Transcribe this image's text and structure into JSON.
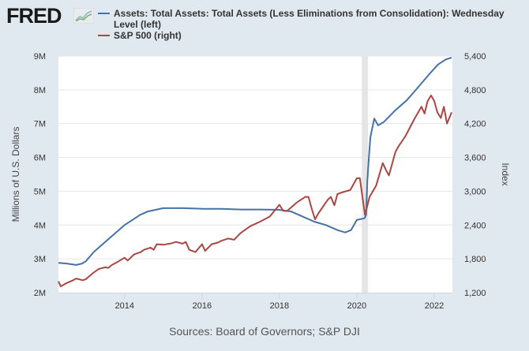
{
  "logo": {
    "text": "FRED",
    "icon": "chart-line-icon"
  },
  "footer": {
    "sources": "Sources: Board of Governors; S&P DJI"
  },
  "colors": {
    "background": "#e1e9f0",
    "plot_bg": "#ffffff",
    "series_left": "#4572a7",
    "series_right": "#aa4643",
    "recession": "#e5e5e5",
    "grid": "#e6e6e6"
  },
  "chart_data": {
    "type": "line",
    "title": "",
    "legend_position": "top",
    "xlabel": "",
    "ylabel_left": "Millions of U.S. Dollars",
    "ylabel_right": "Index",
    "grid": true,
    "xlim": [
      2012.29,
      2022.47
    ],
    "ylim_left": [
      2,
      9
    ],
    "ylim_right": [
      1200,
      5400
    ],
    "x_ticks": [
      "2014",
      "2016",
      "2018",
      "2020",
      "2022"
    ],
    "x_tick_values": [
      2014,
      2016,
      2018,
      2020,
      2022
    ],
    "y_left_ticks": [
      "2M",
      "3M",
      "4M",
      "5M",
      "6M",
      "7M",
      "8M",
      "9M"
    ],
    "y_left_tick_values": [
      2,
      3,
      4,
      5,
      6,
      7,
      8,
      9
    ],
    "y_right_ticks": [
      "1,200",
      "1,800",
      "2,400",
      "3,000",
      "3,600",
      "4,200",
      "4,800",
      "5,400"
    ],
    "y_right_tick_values": [
      1200,
      1800,
      2400,
      3000,
      3600,
      4200,
      4800,
      5400
    ],
    "recession": [
      2020.13,
      2020.29
    ],
    "series": [
      {
        "name": "Assets: Total Assets: Total Assets (Less Eliminations from Consolidation): Wednesday Level (left)",
        "axis": "left",
        "x": [
          2012.29,
          2012.5,
          2012.75,
          2012.9,
          2013.0,
          2013.2,
          2013.4,
          2013.6,
          2013.8,
          2014.0,
          2014.2,
          2014.4,
          2014.6,
          2014.8,
          2015.0,
          2015.5,
          2016.0,
          2016.5,
          2017.0,
          2017.5,
          2018.0,
          2018.3,
          2018.6,
          2018.9,
          2019.2,
          2019.5,
          2019.7,
          2019.85,
          2020.0,
          2020.2,
          2020.24,
          2020.27,
          2020.3,
          2020.35,
          2020.45,
          2020.55,
          2020.7,
          2021.0,
          2021.3,
          2021.6,
          2021.9,
          2022.1,
          2022.3,
          2022.45
        ],
        "values": [
          2.88,
          2.86,
          2.82,
          2.86,
          2.93,
          3.2,
          3.4,
          3.6,
          3.8,
          4.0,
          4.15,
          4.3,
          4.4,
          4.45,
          4.5,
          4.5,
          4.48,
          4.48,
          4.46,
          4.46,
          4.45,
          4.4,
          4.25,
          4.1,
          4.0,
          3.85,
          3.78,
          3.85,
          4.15,
          4.2,
          4.3,
          5.3,
          5.8,
          6.6,
          7.15,
          6.95,
          7.05,
          7.4,
          7.7,
          8.1,
          8.5,
          8.75,
          8.9,
          8.95
        ]
      },
      {
        "name": "S&P 500 (right)",
        "axis": "right",
        "x": [
          2012.29,
          2012.35,
          2012.5,
          2012.67,
          2012.75,
          2012.92,
          2013.0,
          2013.17,
          2013.33,
          2013.5,
          2013.58,
          2013.67,
          2013.83,
          2014.0,
          2014.08,
          2014.25,
          2014.42,
          2014.5,
          2014.67,
          2014.75,
          2014.83,
          2015.0,
          2015.17,
          2015.33,
          2015.5,
          2015.58,
          2015.67,
          2015.83,
          2016.0,
          2016.08,
          2016.25,
          2016.42,
          2016.5,
          2016.67,
          2016.83,
          2017.0,
          2017.25,
          2017.5,
          2017.75,
          2018.0,
          2018.1,
          2018.2,
          2018.45,
          2018.67,
          2018.75,
          2018.83,
          2018.92,
          2019.0,
          2019.25,
          2019.33,
          2019.42,
          2019.5,
          2019.67,
          2019.83,
          2020.0,
          2020.08,
          2020.21,
          2020.33,
          2020.5,
          2020.67,
          2020.75,
          2020.83,
          2021.0,
          2021.08,
          2021.25,
          2021.5,
          2021.67,
          2021.75,
          2021.83,
          2021.92,
          2022.0,
          2022.08,
          2022.17,
          2022.25,
          2022.33,
          2022.45
        ],
        "values": [
          1400,
          1310,
          1370,
          1420,
          1450,
          1420,
          1440,
          1540,
          1620,
          1650,
          1640,
          1690,
          1750,
          1820,
          1770,
          1880,
          1920,
          1960,
          2000,
          1960,
          2060,
          2050,
          2070,
          2100,
          2070,
          2100,
          1960,
          1920,
          2060,
          1940,
          2060,
          2090,
          2120,
          2160,
          2140,
          2260,
          2380,
          2460,
          2550,
          2760,
          2650,
          2650,
          2800,
          2900,
          2900,
          2700,
          2500,
          2600,
          2850,
          2900,
          2750,
          2950,
          2990,
          3020,
          3230,
          3230,
          2580,
          2900,
          3100,
          3500,
          3380,
          3280,
          3700,
          3800,
          3970,
          4300,
          4500,
          4380,
          4600,
          4700,
          4600,
          4400,
          4300,
          4500,
          4200,
          4400
        ]
      }
    ]
  }
}
